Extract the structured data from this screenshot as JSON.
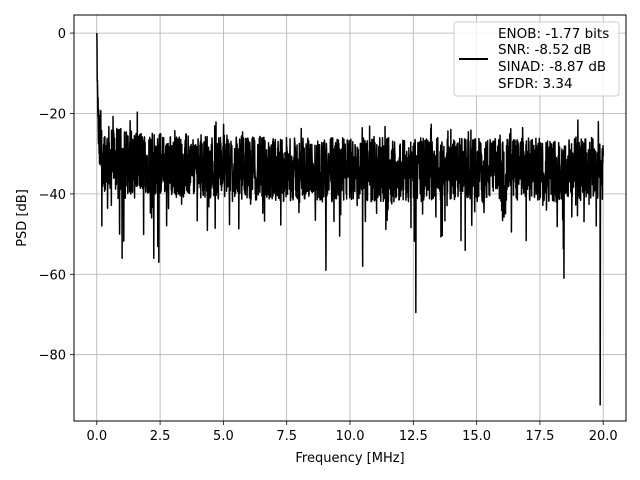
{
  "chart_data": {
    "type": "line",
    "title": "",
    "xlabel": "Frequency [MHz]",
    "ylabel": "PSD [dB]",
    "xlim": [
      -0.9,
      20.9
    ],
    "ylim": [
      -96.5,
      4.5
    ],
    "xticks": [
      0.0,
      2.5,
      5.0,
      7.5,
      10.0,
      12.5,
      15.0,
      17.5,
      20.0
    ],
    "xtick_labels": [
      "0.0",
      "2.5",
      "5.0",
      "7.5",
      "10.0",
      "12.5",
      "15.0",
      "17.5",
      "20.0"
    ],
    "yticks": [
      0,
      -20,
      -40,
      -60,
      -80
    ],
    "ytick_labels": [
      "0",
      "−20",
      "−40",
      "−60",
      "−80"
    ],
    "grid": true,
    "legend_position": "top-right",
    "legend": [
      "ENOB: -1.77 bits",
      "SNR: -8.52 dB",
      "SINAD: -8.87 dB",
      "SFDR: 3.34"
    ],
    "series": [
      {
        "color": "#000000",
        "description": "Noise-like PSD trace from 0 to 20 MHz",
        "x": [
          0.0,
          0.02,
          0.05,
          0.1,
          0.2,
          0.3,
          0.5,
          0.75,
          1.0,
          1.5,
          2.0,
          2.5,
          3.0,
          4.0,
          5.0,
          6.0,
          7.5,
          9.0,
          10.0,
          11.0,
          12.5,
          14.0,
          15.0,
          16.0,
          17.5,
          18.5,
          19.0,
          19.9,
          20.0
        ],
        "y": [
          0,
          -12,
          -22,
          -28,
          -30,
          -31,
          -31,
          -31.5,
          -32,
          -32,
          -32,
          -32.5,
          -33,
          -33,
          -33,
          -33.5,
          -34,
          -34,
          -34,
          -34,
          -34,
          -34,
          -34,
          -34,
          -34,
          -34,
          -34,
          -34,
          -34
        ],
        "noise_spread_db": 8,
        "deep_notches": [
          {
            "x": 0.2,
            "y": -48
          },
          {
            "x": 0.9,
            "y": -50
          },
          {
            "x": 1.0,
            "y": -56
          },
          {
            "x": 2.25,
            "y": -56
          },
          {
            "x": 2.45,
            "y": -57
          },
          {
            "x": 9.05,
            "y": -59
          },
          {
            "x": 10.5,
            "y": -58
          },
          {
            "x": 12.6,
            "y": -69.5
          },
          {
            "x": 18.45,
            "y": -61
          },
          {
            "x": 19.88,
            "y": -92.5
          }
        ]
      }
    ]
  }
}
